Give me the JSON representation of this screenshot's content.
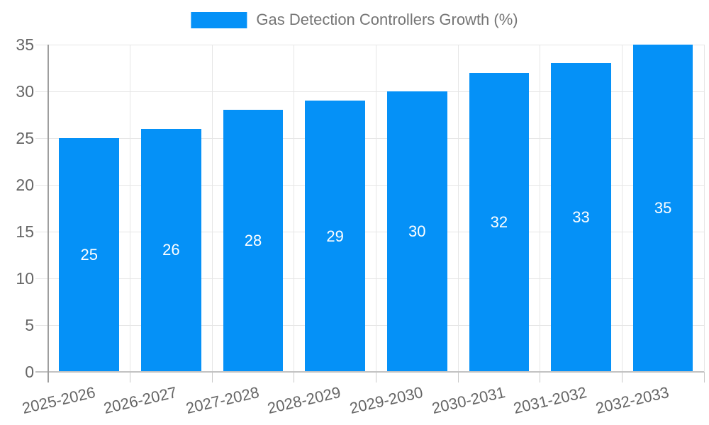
{
  "chart_data": {
    "type": "bar",
    "title": "Gas Detection Controllers Growth (%)",
    "legend": [
      "Gas Detection Controllers Growth (%)"
    ],
    "legend_position": "top-center",
    "categories": [
      "2025-2026",
      "2026-2027",
      "2027-2028",
      "2028-2029",
      "2029-2030",
      "2030-2031",
      "2031-2032",
      "2032-2033"
    ],
    "values": [
      25,
      26,
      28,
      29,
      30,
      32,
      33,
      35
    ],
    "xlabel": "",
    "ylabel": "",
    "ylim": [
      0,
      35
    ],
    "yticks": [
      0,
      5,
      10,
      15,
      20,
      25,
      30,
      35
    ],
    "grid": "on",
    "value_labels_position": "inside-center",
    "style": {
      "bar_color": "#0591f7",
      "value_label_color": "#ffffff",
      "tick_label_color": "#666666",
      "legend_text_color": "#757575",
      "gridline_color": "#e6e6e6",
      "x_tick_mark_color": "#c9c9c9",
      "axis_line_color": "#9e9e9e",
      "baseline_color": "#c2c2c2",
      "background_color": "#ffffff"
    }
  }
}
